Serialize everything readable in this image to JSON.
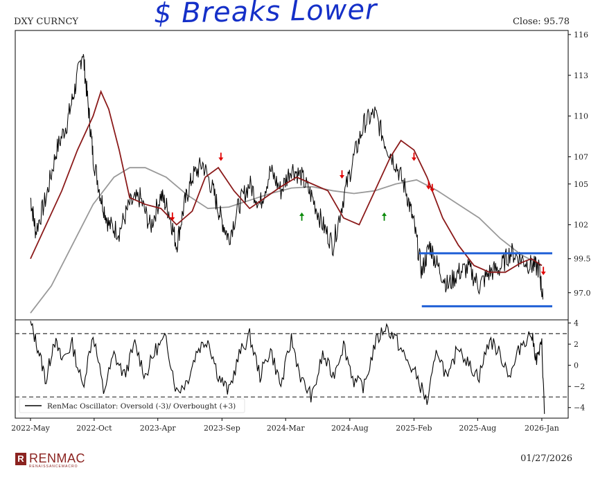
{
  "header": {
    "ticker": "DXY CURNCY",
    "close": "Close: 95.78",
    "annotation": "$ Breaks Lower"
  },
  "footer": {
    "brand": "RENMAC",
    "brand_sub": "RENAISSANCEMACRO",
    "date": "01/27/2026"
  },
  "colors": {
    "price": "#000000",
    "fast_ma": "#8b1a1a",
    "slow_ma": "#999999",
    "sell_arrow": "#e00000",
    "buy_arrow": "#0a8a0a",
    "range_lines": "#1f5fd6",
    "handwriting": "#1530c8"
  },
  "chart_data": [
    {
      "type": "line",
      "name": "price-panel",
      "yticks": [
        97.0,
        99.5,
        102,
        105,
        107,
        110,
        113,
        116
      ],
      "ylim": [
        95.0,
        116.3
      ],
      "xlim": [
        0,
        1
      ],
      "xticks": [
        {
          "label": "2022-May",
          "t": 0.0
        },
        {
          "label": "2022-Oct",
          "t": 0.122
        },
        {
          "label": "2023-Apr",
          "t": 0.244
        },
        {
          "label": "2023-Sep",
          "t": 0.367
        },
        {
          "label": "2024-Mar",
          "t": 0.489
        },
        {
          "label": "2024-Aug",
          "t": 0.612
        },
        {
          "label": "2025-Feb",
          "t": 0.735
        },
        {
          "label": "2025-Aug",
          "t": 0.857
        },
        {
          "label": "2026-Jan",
          "t": 0.98
        }
      ],
      "series": [
        {
          "key": "price",
          "x": [
            0.0,
            0.01,
            0.03,
            0.05,
            0.07,
            0.085,
            0.1,
            0.11,
            0.12,
            0.135,
            0.15,
            0.17,
            0.19,
            0.21,
            0.23,
            0.25,
            0.265,
            0.28,
            0.295,
            0.31,
            0.33,
            0.35,
            0.365,
            0.38,
            0.4,
            0.42,
            0.44,
            0.46,
            0.48,
            0.5,
            0.52,
            0.54,
            0.56,
            0.58,
            0.6,
            0.62,
            0.64,
            0.66,
            0.68,
            0.7,
            0.72,
            0.735,
            0.75,
            0.765,
            0.78,
            0.8,
            0.82,
            0.84,
            0.86,
            0.88,
            0.9,
            0.92,
            0.94,
            0.96,
            0.975,
            0.982
          ],
          "y": [
            104.0,
            101.5,
            104.0,
            107.5,
            109.5,
            112.0,
            114.8,
            111.0,
            107.0,
            104.0,
            102.0,
            101.5,
            103.5,
            104.0,
            101.8,
            104.2,
            103.0,
            100.5,
            103.5,
            105.5,
            106.5,
            104.5,
            102.5,
            101.0,
            103.5,
            105.0,
            103.5,
            106.0,
            104.5,
            106.2,
            105.5,
            104.0,
            102.0,
            100.5,
            104.0,
            107.0,
            109.5,
            110.2,
            108.0,
            106.5,
            104.5,
            102.0,
            98.5,
            100.5,
            99.0,
            97.5,
            98.5,
            98.8,
            97.5,
            98.5,
            98.8,
            100.0,
            99.5,
            99.0,
            98.8,
            96.5
          ]
        },
        {
          "key": "fast_ma",
          "x": [
            0.0,
            0.03,
            0.06,
            0.09,
            0.12,
            0.135,
            0.15,
            0.17,
            0.19,
            0.22,
            0.25,
            0.28,
            0.31,
            0.335,
            0.36,
            0.39,
            0.42,
            0.45,
            0.48,
            0.51,
            0.54,
            0.57,
            0.6,
            0.63,
            0.66,
            0.69,
            0.71,
            0.735,
            0.76,
            0.79,
            0.82,
            0.85,
            0.88,
            0.91,
            0.94,
            0.96,
            0.98
          ],
          "y": [
            99.5,
            102.0,
            104.5,
            107.5,
            110.0,
            111.8,
            110.5,
            107.5,
            104.0,
            103.5,
            103.2,
            102.0,
            103.0,
            105.5,
            106.2,
            104.5,
            103.2,
            104.0,
            104.8,
            105.5,
            105.0,
            104.5,
            102.5,
            102.0,
            104.5,
            107.0,
            108.2,
            107.5,
            105.5,
            102.5,
            100.5,
            99.0,
            98.5,
            98.5,
            99.2,
            99.5,
            99.0
          ]
        },
        {
          "key": "slow_ma",
          "x": [
            0.0,
            0.04,
            0.08,
            0.12,
            0.16,
            0.19,
            0.22,
            0.26,
            0.3,
            0.34,
            0.38,
            0.42,
            0.46,
            0.5,
            0.54,
            0.58,
            0.62,
            0.66,
            0.7,
            0.74,
            0.78,
            0.82,
            0.86,
            0.9,
            0.94,
            0.98
          ],
          "y": [
            95.5,
            97.5,
            100.5,
            103.5,
            105.5,
            106.2,
            106.2,
            105.5,
            104.2,
            103.2,
            103.3,
            103.8,
            104.3,
            104.7,
            104.8,
            104.5,
            104.3,
            104.5,
            105.0,
            105.3,
            104.5,
            103.5,
            102.5,
            101.0,
            99.8,
            99.0
          ]
        }
      ],
      "signals": [
        {
          "type": "sell",
          "t": 0.365,
          "y": 107.0
        },
        {
          "type": "sell",
          "t": 0.597,
          "y": 105.7
        },
        {
          "type": "sell",
          "t": 0.272,
          "y": 102.6
        },
        {
          "type": "sell",
          "t": 0.735,
          "y": 107.0
        },
        {
          "type": "sell",
          "t": 0.77,
          "y": 104.7
        },
        {
          "type": "sell",
          "t": 0.763,
          "y": 104.9
        },
        {
          "type": "sell",
          "t": 0.983,
          "y": 98.6
        },
        {
          "type": "buy",
          "t": 0.52,
          "y": 102.6
        },
        {
          "type": "buy",
          "t": 0.678,
          "y": 102.6
        }
      ],
      "range_lines": [
        {
          "y": 99.9,
          "t0": 0.745,
          "t1": 1.0
        },
        {
          "y": 96.0,
          "t0": 0.75,
          "t1": 1.0
        }
      ]
    },
    {
      "type": "line",
      "name": "oscillator-panel",
      "yticks": [
        -4,
        -2,
        0,
        2,
        4
      ],
      "ylim": [
        -5.0,
        4.3
      ],
      "thresholds": [
        3,
        -3
      ],
      "legend": "RenMac Oscillator: Oversold (-3)/ Overbought (+3)",
      "legend_position": "lower-left",
      "series": [
        {
          "key": "oscillator",
          "x": [
            0.0,
            0.015,
            0.03,
            0.045,
            0.06,
            0.08,
            0.1,
            0.12,
            0.14,
            0.16,
            0.18,
            0.2,
            0.22,
            0.24,
            0.26,
            0.28,
            0.3,
            0.32,
            0.34,
            0.36,
            0.38,
            0.4,
            0.42,
            0.44,
            0.46,
            0.48,
            0.5,
            0.52,
            0.54,
            0.56,
            0.58,
            0.6,
            0.62,
            0.64,
            0.66,
            0.68,
            0.7,
            0.72,
            0.74,
            0.76,
            0.78,
            0.8,
            0.82,
            0.84,
            0.86,
            0.88,
            0.9,
            0.92,
            0.94,
            0.96,
            0.97,
            0.98,
            0.985
          ],
          "y": [
            4.0,
            1.5,
            -1.5,
            2.5,
            0.5,
            2.0,
            -2.0,
            3.0,
            -2.5,
            1.0,
            -1.0,
            2.0,
            -1.0,
            1.5,
            2.5,
            -2.5,
            -1.5,
            1.5,
            2.5,
            -1.0,
            -2.5,
            1.0,
            2.8,
            -1.0,
            1.5,
            -2.0,
            2.5,
            -1.5,
            -3.0,
            1.0,
            -1.0,
            2.0,
            -1.5,
            -2.0,
            2.0,
            3.7,
            2.5,
            0.5,
            -1.0,
            -3.5,
            1.5,
            -1.5,
            2.0,
            0.0,
            -1.0,
            2.5,
            1.0,
            -1.0,
            2.0,
            3.0,
            0.5,
            2.0,
            -4.6
          ]
        }
      ]
    }
  ]
}
